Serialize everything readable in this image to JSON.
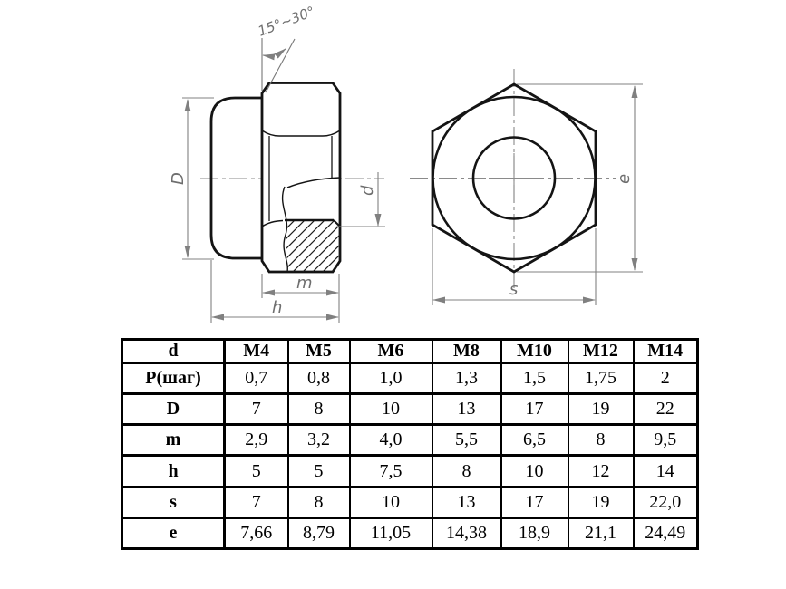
{
  "drawing": {
    "side_view": {
      "angle_label": "15°~30°",
      "labels": {
        "D": "D",
        "d": "d",
        "m": "m",
        "h": "h"
      }
    },
    "front_view": {
      "labels": {
        "s": "s",
        "e": "e"
      }
    }
  },
  "table": {
    "header": [
      "d",
      "M4",
      "M5",
      "M6",
      "M8",
      "M10",
      "M12",
      "M14"
    ],
    "rows": [
      {
        "label": "P(шаг)",
        "values": [
          "0,7",
          "0,8",
          "1,0",
          "1,3",
          "1,5",
          "1,75",
          "2"
        ]
      },
      {
        "label": "D",
        "values": [
          "7",
          "8",
          "10",
          "13",
          "17",
          "19",
          "22"
        ]
      },
      {
        "label": "m",
        "values": [
          "2,9",
          "3,2",
          "4,0",
          "5,5",
          "6,5",
          "8",
          "9,5"
        ]
      },
      {
        "label": "h",
        "values": [
          "5",
          "5",
          "7,5",
          "8",
          "10",
          "12",
          "14"
        ]
      },
      {
        "label": "s",
        "values": [
          "7",
          "8",
          "10",
          "13",
          "17",
          "19",
          "22,0"
        ]
      },
      {
        "label": "e",
        "values": [
          "7,66",
          "8,79",
          "11,05",
          "14,38",
          "18,9",
          "21,1",
          "24,49"
        ]
      }
    ]
  },
  "colors": {
    "outline": "#141414",
    "dimension": "#808080",
    "table_border": "#000000"
  }
}
